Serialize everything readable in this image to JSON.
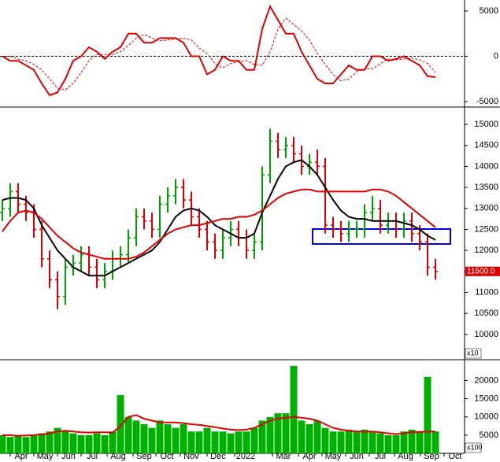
{
  "chart_data": [
    {
      "type": "line",
      "ylim": [
        -5603,
        6207
      ],
      "yticks": [
        -5000,
        0,
        5000
      ],
      "zero_line": true,
      "series": [
        {
          "color": "#e00000",
          "style": "solid",
          "values": [
            0,
            -500,
            -500,
            -1000,
            -1500,
            -3000,
            -4300,
            -4000,
            -2500,
            -500,
            0,
            1000,
            500,
            -300,
            500,
            1000,
            2500,
            2500,
            1500,
            1500,
            2000,
            2000,
            2000,
            1500,
            0,
            0,
            -2000,
            -1500,
            0,
            -500,
            -500,
            -1500,
            -1500,
            3000,
            5500,
            4000,
            2500,
            2500,
            500,
            -1000,
            -2500,
            -3000,
            -3000,
            -2000,
            -1000,
            -1500,
            -1500,
            0,
            0,
            -500,
            -300,
            0,
            -500,
            -1000,
            -2200,
            -2300
          ]
        },
        {
          "color": "#e00000",
          "style": "dashed",
          "values": [
            0,
            0,
            -300,
            -500,
            -900,
            -1500,
            -2500,
            -3500,
            -3700,
            -3000,
            -1800,
            -500,
            200,
            200,
            200,
            500,
            1200,
            2000,
            2400,
            2000,
            1700,
            1800,
            1900,
            2000,
            1800,
            900,
            300,
            -800,
            -1300,
            -800,
            -600,
            -500,
            -900,
            -1000,
            500,
            3000,
            4200,
            3500,
            2800,
            1800,
            300,
            -900,
            -2000,
            -2700,
            -2500,
            -1700,
            -1400,
            -1400,
            -800,
            -300,
            -400,
            -300,
            -200,
            -400,
            -800,
            -1800
          ]
        }
      ]
    },
    {
      "type": "ohlc",
      "ylim": [
        9417,
        15376
      ],
      "yticks": [
        10000,
        10500,
        11000,
        11500,
        12000,
        12500,
        13000,
        13500,
        14000,
        14500,
        15000
      ],
      "multiplier": "x10",
      "up_color": "#00a000",
      "down_color": "#e00000",
      "last_value": 11500,
      "last_value_label": "11500.0",
      "open": [
        12900,
        13000,
        13400,
        13100,
        12900,
        12500,
        11800,
        11300,
        10900,
        11600,
        11700,
        11900,
        11600,
        11300,
        11500,
        11800,
        11900,
        12300,
        12800,
        12700,
        12500,
        13100,
        13300,
        13500,
        13200,
        12800,
        12500,
        12200,
        12000,
        12300,
        12500,
        12300,
        12000,
        12200,
        13800,
        14600,
        14400,
        14500,
        14300,
        14000,
        14100,
        14000,
        12600,
        12500,
        12400,
        12500,
        12500,
        12900,
        13000,
        12600,
        12700,
        12500,
        12700,
        12400,
        12200,
        11600
      ],
      "high": [
        13200,
        13600,
        13600,
        13300,
        13100,
        12700,
        12000,
        11500,
        11800,
        11900,
        12100,
        12100,
        11800,
        11700,
        12000,
        12100,
        12500,
        13000,
        13000,
        12900,
        13300,
        13500,
        13700,
        13700,
        13400,
        13000,
        12700,
        12400,
        12500,
        12700,
        12700,
        12500,
        12400,
        14000,
        14900,
        14800,
        14700,
        14700,
        14500,
        14300,
        14400,
        14200,
        12800,
        12700,
        12700,
        12700,
        13100,
        13300,
        13200,
        12900,
        12900,
        12900,
        12900,
        12600,
        12400,
        11800
      ],
      "low": [
        12700,
        12800,
        12900,
        12700,
        12300,
        11600,
        11100,
        10600,
        10700,
        11400,
        11500,
        11400,
        11100,
        11100,
        11300,
        11600,
        11700,
        12100,
        12500,
        12300,
        12300,
        12900,
        13100,
        13000,
        12600,
        12300,
        12000,
        11800,
        11800,
        12100,
        12100,
        11800,
        11800,
        12000,
        13600,
        14200,
        14200,
        14100,
        13800,
        13800,
        13800,
        12400,
        12300,
        12200,
        12200,
        12300,
        12300,
        12700,
        12400,
        12400,
        12300,
        12300,
        12200,
        12000,
        11400,
        11300
      ],
      "close": [
        13000,
        13400,
        13100,
        12900,
        12500,
        11800,
        11300,
        10900,
        11600,
        11700,
        11900,
        11600,
        11300,
        11500,
        11800,
        11900,
        12300,
        12800,
        12700,
        12500,
        13100,
        13300,
        13500,
        13200,
        12800,
        12500,
        12200,
        12000,
        12300,
        12500,
        12300,
        12000,
        12200,
        13800,
        14600,
        14400,
        14500,
        14300,
        14000,
        14100,
        14000,
        12600,
        12500,
        12400,
        12500,
        12500,
        12900,
        13000,
        12600,
        12700,
        12500,
        12700,
        12400,
        12200,
        11600,
        11500
      ],
      "series": [
        {
          "color": "#000000",
          "values": [
            13200,
            13250,
            13250,
            13200,
            13000,
            12600,
            12300,
            12000,
            11800,
            11600,
            11500,
            11400,
            11400,
            11400,
            11500,
            11600,
            11700,
            11800,
            11900,
            12000,
            12200,
            12500,
            12800,
            12950,
            13000,
            12950,
            12800,
            12600,
            12500,
            12400,
            12300,
            12300,
            12400,
            12900,
            13300,
            13700,
            14000,
            14100,
            14150,
            14000,
            13800,
            13500,
            13200,
            12950,
            12800,
            12750,
            12750,
            12700,
            12700,
            12700,
            12700,
            12650,
            12600,
            12500,
            12350,
            12250
          ]
        },
        {
          "color": "#e00000",
          "values": [
            12450,
            12700,
            12900,
            12950,
            12900,
            12750,
            12550,
            12350,
            12200,
            12050,
            11950,
            11900,
            11850,
            11800,
            11800,
            11800,
            11800,
            11850,
            11950,
            12100,
            12250,
            12400,
            12500,
            12550,
            12600,
            12600,
            12650,
            12700,
            12750,
            12750,
            12800,
            12800,
            12850,
            12950,
            13100,
            13250,
            13350,
            13400,
            13450,
            13450,
            13400,
            13400,
            13400,
            13400,
            13400,
            13400,
            13400,
            13450,
            13450,
            13400,
            13300,
            13150,
            13000,
            12850,
            12700,
            12550
          ]
        }
      ]
    },
    {
      "type": "bar",
      "ylim": [
        0,
        25500
      ],
      "yticks": [
        5000,
        10000,
        15000,
        20000
      ],
      "multiplier": "x100",
      "color": "#00b000",
      "values": [
        5000,
        4500,
        5000,
        4500,
        5000,
        5500,
        6000,
        7000,
        6000,
        5500,
        5000,
        5000,
        5500,
        5000,
        6000,
        16000,
        10000,
        9000,
        8000,
        7000,
        9000,
        8000,
        7000,
        8000,
        6000,
        6000,
        7000,
        6000,
        6000,
        5500,
        6000,
        6000,
        7000,
        9000,
        10000,
        11000,
        11000,
        24000,
        9000,
        8000,
        9000,
        7000,
        6000,
        6000,
        6500,
        6000,
        6500,
        6000,
        5500,
        5000,
        5000,
        6000,
        6500,
        6000,
        21000,
        6000
      ],
      "series": [
        {
          "color": "#e00000",
          "values": [
            5000,
            5000,
            4800,
            4900,
            5000,
            5200,
            5500,
            6000,
            6200,
            6000,
            5800,
            5700,
            5800,
            5800,
            5700,
            7500,
            10000,
            10500,
            9500,
            9000,
            8500,
            8500,
            8500,
            8300,
            8000,
            7800,
            7500,
            7200,
            6800,
            6500,
            6400,
            6500,
            7000,
            8000,
            9000,
            9500,
            9800,
            10000,
            9800,
            9500,
            9000,
            8000,
            7000,
            6500,
            6200,
            6000,
            6000,
            6000,
            5800,
            5500,
            5300,
            5500,
            5800,
            5900,
            6000,
            6000
          ]
        }
      ],
      "xlim": [
        -0.3,
        58.7
      ],
      "xticks": [
        {
          "value": 2.4,
          "label": "Apr"
        },
        {
          "value": 5.4,
          "label": "May"
        },
        {
          "value": 8.4,
          "label": "Jun"
        },
        {
          "value": 11.4,
          "label": "Jul"
        },
        {
          "value": 14.7,
          "label": "Aug"
        },
        {
          "value": 18,
          "label": "Sep"
        },
        {
          "value": 20.9,
          "label": "Oct"
        },
        {
          "value": 24,
          "label": "Nov"
        },
        {
          "value": 27.4,
          "label": "Dec"
        },
        {
          "value": 30.9,
          "label": "2022"
        },
        {
          "value": 35.7,
          "label": "Mar"
        },
        {
          "value": 39,
          "label": "Apr"
        },
        {
          "value": 42,
          "label": "May"
        },
        {
          "value": 45,
          "label": "Jun"
        },
        {
          "value": 48,
          "label": "Jul"
        },
        {
          "value": 51.2,
          "label": "Aug"
        },
        {
          "value": 54.5,
          "label": "Sep"
        },
        {
          "value": 57.5,
          "label": "Oct"
        }
      ]
    }
  ]
}
